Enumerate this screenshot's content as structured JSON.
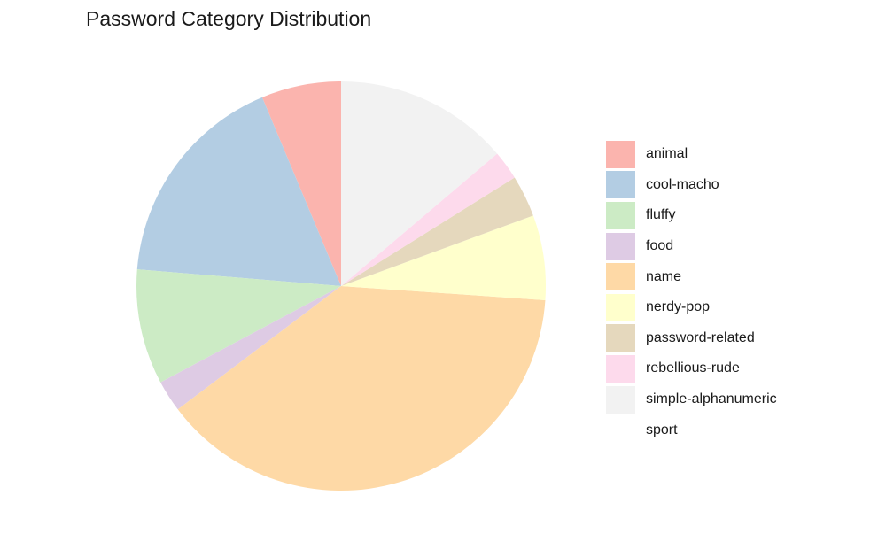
{
  "chart_data": {
    "type": "pie",
    "title": "Password Category Distribution",
    "categories": [
      "animal",
      "cool-macho",
      "fluffy",
      "food",
      "name",
      "nerdy-pop",
      "password-related",
      "rebellious-rude",
      "simple-alphanumeric",
      "sport"
    ],
    "values": [
      6.3,
      17.4,
      9.1,
      2.5,
      38.6,
      6.7,
      3.3,
      2.3,
      13.8,
      0.0
    ],
    "colors": [
      "#FBB4AE",
      "#B3CDE3",
      "#CCEBC5",
      "#DECBE4",
      "#FED9A6",
      "#FFFFCC",
      "#E5D8BD",
      "#FDDAEC",
      "#F2F2F2",
      "#FFFFFF"
    ],
    "legend_position": "right"
  }
}
